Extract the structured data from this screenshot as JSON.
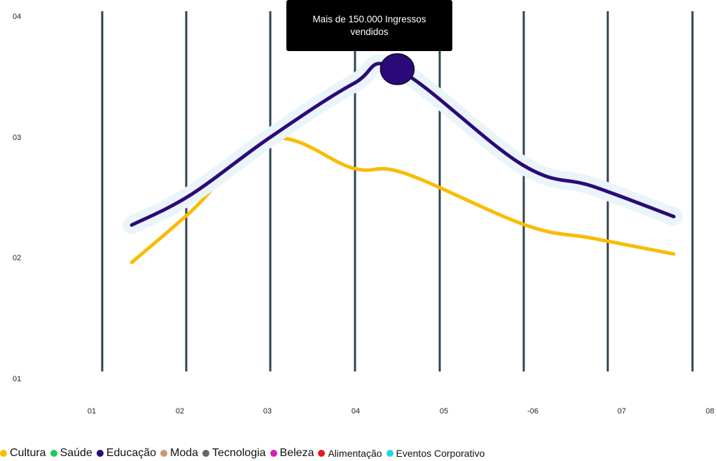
{
  "chart_data": {
    "type": "line",
    "y_ticks": [
      "01",
      "02",
      "03",
      "04"
    ],
    "x_ticks": [
      "01",
      "02",
      "03",
      "04",
      "05",
      "-06",
      "07",
      "08"
    ],
    "ylim": [
      1,
      4
    ],
    "grid": {
      "vertical": true,
      "horizontal": false
    },
    "series": [
      {
        "name": "Cultura",
        "color": "#F9BC05",
        "highlighted": false,
        "points": [
          [
            1.35,
            1.96
          ],
          [
            2.05,
            2.38
          ],
          [
            2.98,
            2.98
          ],
          [
            3.98,
            2.74
          ],
          [
            4.58,
            2.7
          ],
          [
            6.02,
            2.27
          ],
          [
            6.82,
            2.16
          ],
          [
            7.78,
            2.03
          ]
        ]
      },
      {
        "name": "Educação",
        "color": "#2A0A78",
        "highlighted": true,
        "points": [
          [
            1.35,
            2.27
          ],
          [
            2.05,
            2.52
          ],
          [
            2.98,
            2.99
          ],
          [
            3.98,
            3.44
          ],
          [
            4.5,
            3.56
          ],
          [
            5.98,
            2.77
          ],
          [
            6.82,
            2.59
          ],
          [
            7.78,
            2.34
          ]
        ]
      }
    ],
    "annotation": {
      "text": "Mais de 150.000 Ingressos vendidos",
      "series": "Educação",
      "x": 4.5,
      "y": 3.56
    },
    "legend": {
      "position": "bottom-left",
      "items": [
        {
          "label": "Cultura",
          "color": "#F9BC05"
        },
        {
          "label": "Saúde",
          "color": "#22C55E"
        },
        {
          "label": "Educação",
          "color": "#2A0A78"
        },
        {
          "label": "Moda",
          "color": "#C49A7A"
        },
        {
          "label": "Tecnologia",
          "color": "#666666"
        },
        {
          "label": "Beleza",
          "color": "#D61EB8"
        },
        {
          "label": "Alimentação",
          "color": "#E11D1D"
        },
        {
          "label": "Eventos Corporativo",
          "color": "#22D3EE"
        }
      ]
    },
    "gridline_color": "#2F4550",
    "glow_color": "#EAF4FB"
  }
}
